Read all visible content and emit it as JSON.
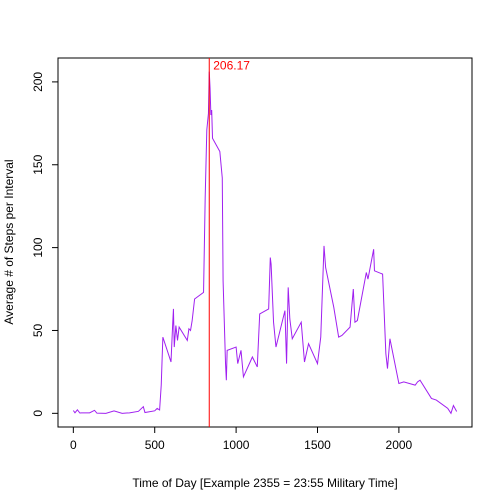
{
  "chart_data": {
    "type": "line",
    "xlabel": "Time of Day [Example 2355 = 23:55 Military Time]",
    "ylabel": "Average # of Steps per Interval",
    "x": [
      0,
      10,
      25,
      40,
      50,
      100,
      130,
      145,
      200,
      250,
      300,
      345,
      400,
      430,
      440,
      500,
      515,
      530,
      540,
      550,
      600,
      610,
      615,
      620,
      630,
      640,
      650,
      700,
      710,
      720,
      730,
      745,
      800,
      810,
      820,
      830,
      835,
      840,
      845,
      850,
      855,
      900,
      915,
      920,
      935,
      940,
      945,
      1000,
      1010,
      1030,
      1045,
      1100,
      1130,
      1145,
      1200,
      1210,
      1215,
      1230,
      1245,
      1300,
      1310,
      1320,
      1330,
      1345,
      1400,
      1420,
      1445,
      1500,
      1520,
      1540,
      1550,
      1600,
      1630,
      1650,
      1700,
      1720,
      1730,
      1745,
      1800,
      1810,
      1845,
      1850,
      1900,
      1920,
      1930,
      1945,
      2000,
      2030,
      2100,
      2115,
      2130,
      2200,
      2230,
      2300,
      2320,
      2335,
      2355
    ],
    "series": [
      {
        "name": "steps",
        "color": "#a020f0",
        "values": [
          1.7,
          0.3,
          2.1,
          0.2,
          0.3,
          0.3,
          1.8,
          0.1,
          0,
          1.5,
          0,
          0.3,
          1.2,
          4,
          0.5,
          1.5,
          3,
          2,
          17,
          46,
          31,
          53,
          63,
          40,
          53,
          44,
          52,
          44,
          51,
          50,
          56,
          69,
          73,
          130,
          171,
          181,
          206.17,
          196,
          180,
          183,
          166,
          158,
          142,
          80,
          30,
          20,
          38,
          40,
          30,
          38,
          22,
          34,
          28,
          60,
          63,
          94,
          90,
          55,
          40,
          62,
          30,
          76,
          57,
          45,
          55,
          31,
          42,
          30,
          46,
          101,
          88,
          64,
          46,
          47,
          52,
          75,
          55,
          56,
          85,
          81,
          99,
          86,
          84,
          36,
          27,
          45,
          18,
          19,
          17,
          19,
          20,
          9,
          8,
          3,
          0,
          4.7,
          1.1
        ]
      }
    ],
    "xlim": [
      -94.2,
      2449.2
    ],
    "ylim": [
      -8.25,
      214.42
    ],
    "xticks": [
      0,
      500,
      1000,
      1500,
      2000
    ],
    "yticks": [
      0,
      50,
      100,
      150,
      200
    ],
    "annotation": {
      "label": "206.17",
      "x": 835,
      "value": 206.17,
      "color": "#ff0000"
    }
  }
}
